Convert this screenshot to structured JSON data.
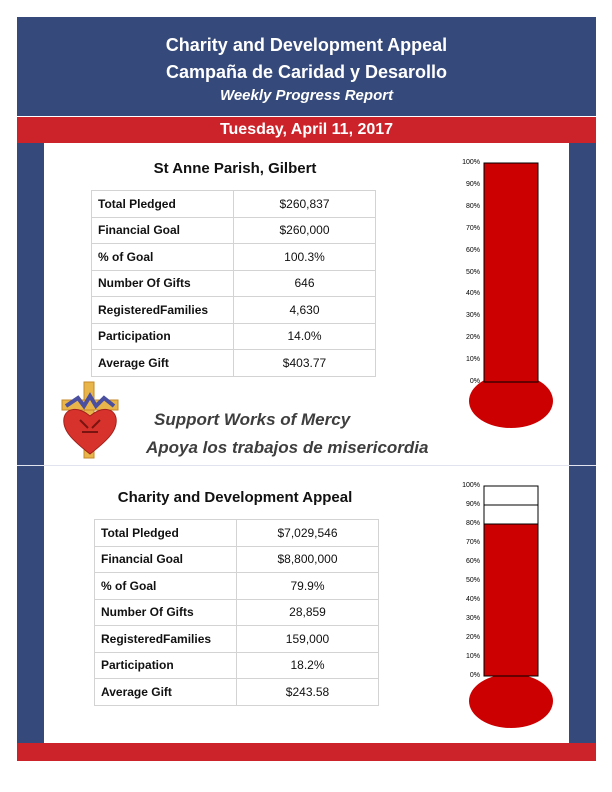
{
  "header": {
    "title_en": "Charity and Development Appeal",
    "title_es": "Campaña de Caridad y Desarollo",
    "subtitle": "Weekly Progress Report"
  },
  "date": "Tuesday, April 11, 2017",
  "colors": {
    "navy": "#35497a",
    "red": "#cc2229",
    "mercury": "#cc0000"
  },
  "parish": {
    "title": "St Anne Parish, Gilbert",
    "rows": [
      {
        "label": "Total Pledged",
        "value": "$260,837"
      },
      {
        "label": "Financial Goal",
        "value": "$260,000"
      },
      {
        "label": "% of Goal",
        "value": "100.3%"
      },
      {
        "label": "Number Of Gifts",
        "value": "646"
      },
      {
        "label": "RegisteredFamilies",
        "value": "4,630"
      },
      {
        "label": "Participation",
        "value": "14.0%"
      },
      {
        "label": "Average Gift",
        "value": "$403.77"
      }
    ],
    "thermometer_fill_percent": 100
  },
  "mission": {
    "line_en": "Support Works of Mercy",
    "line_es": "Apoya los trabajos de misericordia",
    "logo_icon": "cross-heart-icon"
  },
  "appeal": {
    "title": "Charity and Development Appeal",
    "rows": [
      {
        "label": "Total Pledged",
        "value": "$7,029,546"
      },
      {
        "label": "Financial Goal",
        "value": "$8,800,000"
      },
      {
        "label": "% of Goal",
        "value": "79.9%"
      },
      {
        "label": "Number Of Gifts",
        "value": "28,859"
      },
      {
        "label": "RegisteredFamilies",
        "value": "159,000"
      },
      {
        "label": "Participation",
        "value": "18.2%"
      },
      {
        "label": "Average Gift",
        "value": "$243.58"
      }
    ],
    "thermometer_fill_percent": 80
  },
  "thermometer_ticks": [
    "100%",
    "90%",
    "80%",
    "70%",
    "60%",
    "50%",
    "40%",
    "30%",
    "20%",
    "10%",
    "0%"
  ]
}
